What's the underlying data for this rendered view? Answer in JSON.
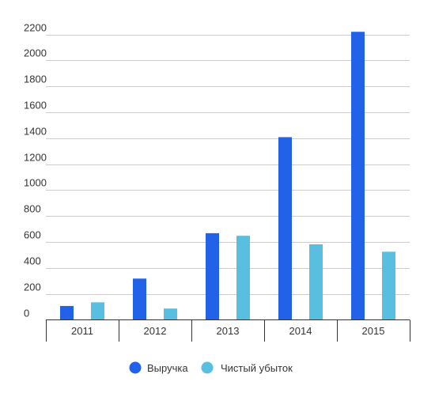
{
  "chart_data": {
    "type": "bar",
    "categories": [
      "2011",
      "2012",
      "2013",
      "2014",
      "2015"
    ],
    "series": [
      {
        "name": "Выручка",
        "color": "#2162e8",
        "values": [
          107,
          318,
          668,
          1408,
          2220
        ]
      },
      {
        "name": "Чистый убыток",
        "color": "#58bfe0",
        "values": [
          135,
          87,
          648,
          582,
          525
        ]
      }
    ],
    "y_ticks": [
      "0",
      "200",
      "400",
      "600",
      "800",
      "1000",
      "1200",
      "1400",
      "1600",
      "1800",
      "2000",
      "2200"
    ],
    "ylim": [
      0,
      2200
    ],
    "grid": true,
    "legend_position": "bottom",
    "title": "",
    "xlabel": "",
    "ylabel": ""
  }
}
